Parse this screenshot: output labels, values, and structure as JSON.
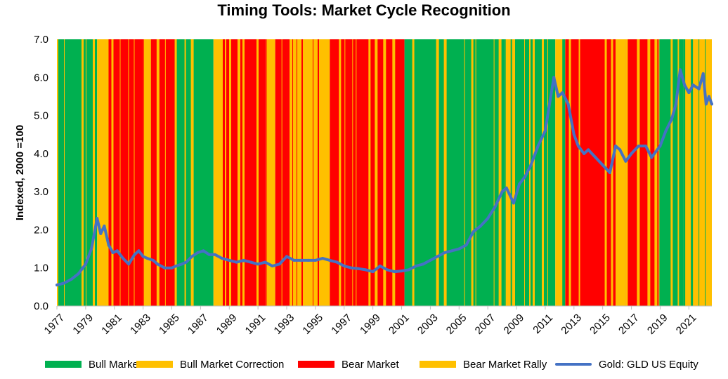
{
  "chart_data": {
    "type": "line",
    "title": "Timing Tools: Market Cycle Recognition",
    "ylabel": "Indexed, 2000 =100",
    "xlabel": "",
    "ylim": [
      0,
      7
    ],
    "yticks": [
      "0.0",
      "1.0",
      "2.0",
      "3.0",
      "4.0",
      "5.0",
      "6.0",
      "7.0"
    ],
    "xlim": [
      1977,
      2022.6
    ],
    "xticks": [
      "1977",
      "1979",
      "1981",
      "1983",
      "1985",
      "1987",
      "1989",
      "1991",
      "1993",
      "1995",
      "1997",
      "1999",
      "2001",
      "2003",
      "2005",
      "2007",
      "2009",
      "2011",
      "2013",
      "2015",
      "2017",
      "2019",
      "2021"
    ],
    "legend_position": "bottom",
    "regime_colors": {
      "bull": "#00b050",
      "bull_correction": "#ffc000",
      "bear": "#ff0000",
      "bear_rally": "#ffc000"
    },
    "legend": [
      {
        "key": "bull",
        "label": "Bull Market",
        "kind": "area",
        "color": "#00b050"
      },
      {
        "key": "bull_correction",
        "label": "Bull Market Correction",
        "kind": "area",
        "color": "#ffc000"
      },
      {
        "key": "bear",
        "label": "Bear Market",
        "kind": "area",
        "color": "#ff0000"
      },
      {
        "key": "bear_rally",
        "label": "Bear Market Rally",
        "kind": "area",
        "color": "#ffc000"
      },
      {
        "key": "gold",
        "label": "Gold: GLD US Equity",
        "kind": "line",
        "color": "#4472c4"
      }
    ],
    "regimes": [
      {
        "start": 1977.0,
        "end": 1979.8,
        "state": "bull"
      },
      {
        "start": 1979.8,
        "end": 1980.4,
        "state": "bull_correction"
      },
      {
        "start": 1980.4,
        "end": 1983.0,
        "state": "bear"
      },
      {
        "start": 1983.0,
        "end": 1983.5,
        "state": "bear_rally"
      },
      {
        "start": 1983.5,
        "end": 1985.2,
        "state": "bear"
      },
      {
        "start": 1985.2,
        "end": 1987.9,
        "state": "bull"
      },
      {
        "start": 1987.9,
        "end": 1988.4,
        "state": "bull_correction"
      },
      {
        "start": 1988.4,
        "end": 1991.5,
        "state": "bear"
      },
      {
        "start": 1991.5,
        "end": 1992.2,
        "state": "bear_rally"
      },
      {
        "start": 1992.2,
        "end": 1993.0,
        "state": "bear"
      },
      {
        "start": 1993.0,
        "end": 1996.0,
        "state": "bear_rally"
      },
      {
        "start": 1996.0,
        "end": 2001.2,
        "state": "bear"
      },
      {
        "start": 2001.2,
        "end": 2008.2,
        "state": "bull"
      },
      {
        "start": 2008.2,
        "end": 2008.9,
        "state": "bull_correction"
      },
      {
        "start": 2008.9,
        "end": 2011.7,
        "state": "bull"
      },
      {
        "start": 2011.7,
        "end": 2012.4,
        "state": "bull_correction"
      },
      {
        "start": 2012.4,
        "end": 2015.9,
        "state": "bear"
      },
      {
        "start": 2015.9,
        "end": 2016.6,
        "state": "bear_rally"
      },
      {
        "start": 2016.6,
        "end": 2018.9,
        "state": "bear"
      },
      {
        "start": 2018.9,
        "end": 2020.6,
        "state": "bull"
      },
      {
        "start": 2020.6,
        "end": 2022.6,
        "state": "bull_correction"
      }
    ],
    "series": [
      {
        "name": "Gold: GLD US Equity",
        "color": "#4472c4",
        "x": [
          1977.0,
          1977.5,
          1978.0,
          1978.5,
          1979.0,
          1979.4,
          1979.8,
          1980.05,
          1980.3,
          1980.6,
          1980.9,
          1981.2,
          1981.6,
          1982.0,
          1982.4,
          1982.7,
          1983.0,
          1983.3,
          1983.7,
          1984.0,
          1984.5,
          1985.0,
          1985.3,
          1985.7,
          1986.0,
          1986.4,
          1986.8,
          1987.2,
          1987.6,
          1988.0,
          1988.5,
          1989.0,
          1989.5,
          1990.0,
          1990.5,
          1991.0,
          1991.5,
          1992.0,
          1992.5,
          1993.0,
          1993.5,
          1994.0,
          1994.5,
          1995.0,
          1995.5,
          1996.0,
          1996.5,
          1997.0,
          1997.5,
          1998.0,
          1998.5,
          1999.0,
          1999.5,
          2000.0,
          2000.5,
          2001.0,
          2001.5,
          2002.0,
          2002.5,
          2003.0,
          2003.5,
          2004.0,
          2004.5,
          2005.0,
          2005.5,
          2006.0,
          2006.5,
          2007.0,
          2007.5,
          2008.0,
          2008.3,
          2008.8,
          2009.2,
          2009.6,
          2010.0,
          2010.5,
          2011.0,
          2011.3,
          2011.6,
          2011.9,
          2012.2,
          2012.6,
          2013.0,
          2013.3,
          2013.7,
          2014.0,
          2014.5,
          2015.0,
          2015.5,
          2015.9,
          2016.2,
          2016.6,
          2017.0,
          2017.5,
          2018.0,
          2018.4,
          2018.8,
          2019.0,
          2019.4,
          2019.8,
          2020.1,
          2020.4,
          2020.7,
          2021.0,
          2021.3,
          2021.7,
          2022.0,
          2022.2,
          2022.4,
          2022.6
        ],
        "values": [
          0.55,
          0.6,
          0.7,
          0.85,
          1.1,
          1.5,
          2.3,
          1.9,
          2.1,
          1.6,
          1.4,
          1.45,
          1.25,
          1.1,
          1.35,
          1.45,
          1.3,
          1.25,
          1.2,
          1.1,
          1.0,
          1.0,
          1.05,
          1.1,
          1.15,
          1.3,
          1.4,
          1.45,
          1.35,
          1.35,
          1.25,
          1.2,
          1.15,
          1.2,
          1.15,
          1.1,
          1.15,
          1.05,
          1.1,
          1.3,
          1.2,
          1.2,
          1.2,
          1.2,
          1.25,
          1.2,
          1.15,
          1.05,
          1.0,
          0.98,
          0.95,
          0.9,
          1.05,
          0.95,
          0.9,
          0.92,
          0.95,
          1.05,
          1.1,
          1.2,
          1.3,
          1.4,
          1.45,
          1.5,
          1.6,
          1.95,
          2.1,
          2.3,
          2.6,
          3.0,
          3.1,
          2.7,
          3.2,
          3.4,
          3.7,
          4.2,
          4.6,
          5.3,
          6.0,
          5.5,
          5.6,
          5.3,
          4.5,
          4.2,
          4.0,
          4.1,
          3.9,
          3.7,
          3.5,
          4.2,
          4.1,
          3.8,
          4.0,
          4.2,
          4.2,
          3.9,
          4.1,
          4.2,
          4.6,
          4.9,
          5.3,
          6.2,
          5.8,
          5.6,
          5.8,
          5.7,
          6.1,
          5.3,
          5.5,
          5.3
        ]
      }
    ]
  }
}
